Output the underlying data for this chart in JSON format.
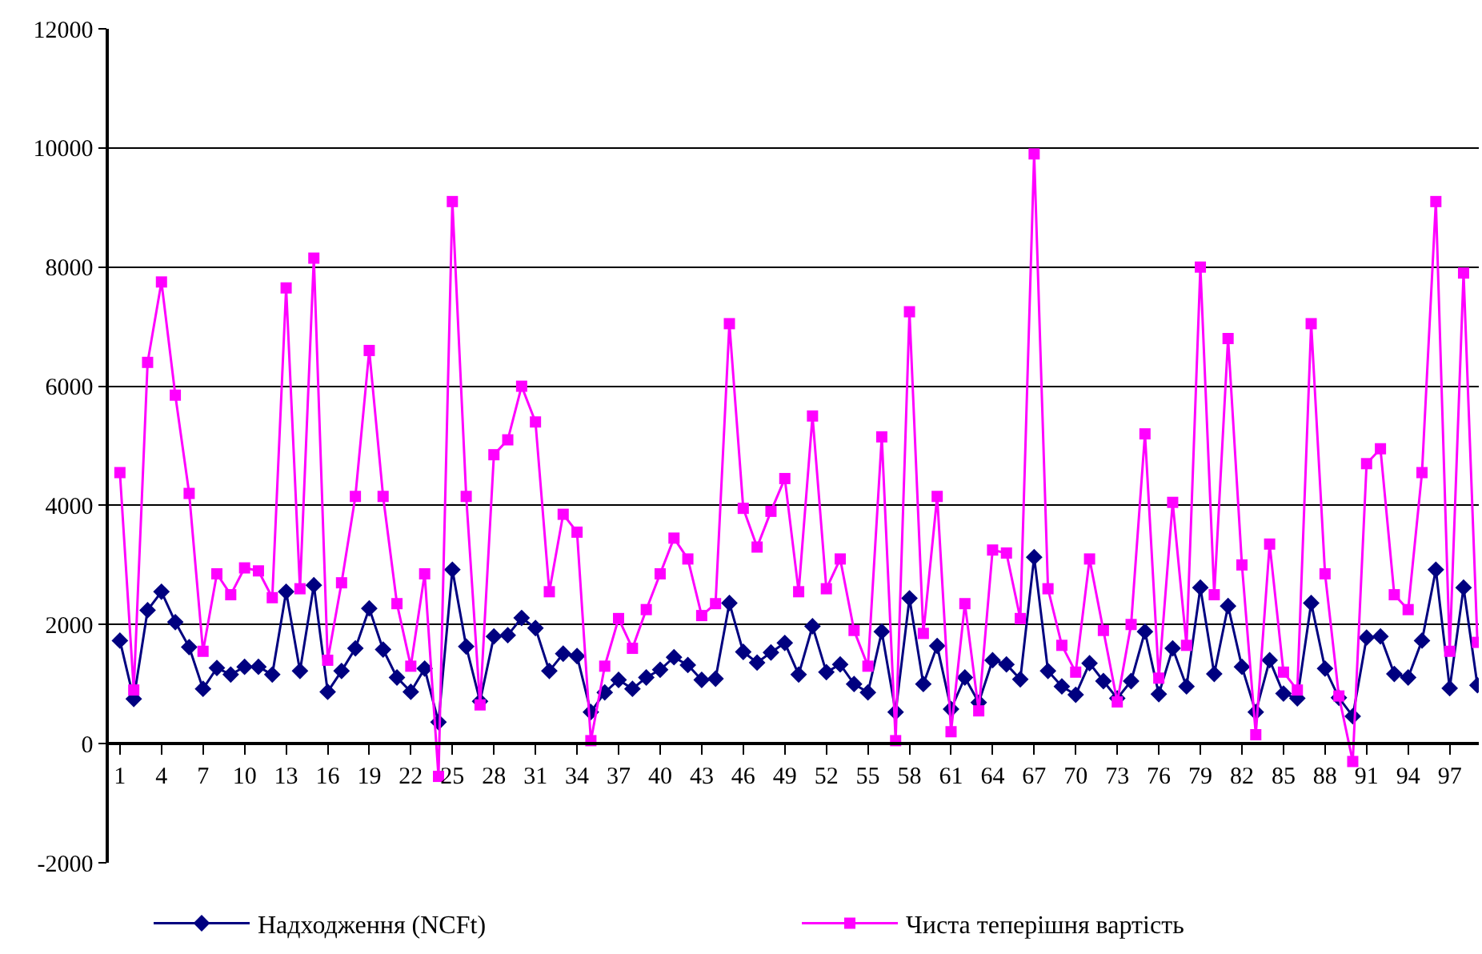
{
  "chart_data": {
    "type": "line",
    "categories": [
      "1",
      null,
      null,
      "4",
      null,
      null,
      "7",
      null,
      null,
      "10",
      null,
      null,
      "13",
      null,
      null,
      "16",
      null,
      null,
      "19",
      null,
      null,
      "22",
      null,
      null,
      "25",
      null,
      null,
      "28",
      null,
      null,
      "31",
      null,
      null,
      "34",
      null,
      null,
      "37",
      null,
      null,
      "40",
      null,
      null,
      "43",
      null,
      null,
      "46",
      null,
      null,
      "49",
      null,
      null,
      "52",
      null,
      null,
      "55",
      null,
      null,
      "58",
      null,
      null,
      "61",
      null,
      null,
      "64",
      null,
      null,
      "67",
      null,
      null,
      "70",
      null,
      null,
      "73",
      null,
      null,
      "76",
      null,
      null,
      "79",
      null,
      null,
      "82",
      null,
      null,
      "85",
      null,
      null,
      "88",
      null,
      null,
      "91",
      null,
      null,
      "94",
      null,
      null,
      "97",
      null,
      null
    ],
    "series": [
      {
        "name": "Надходження (NCFt)",
        "color": "#000080",
        "marker": "diamond",
        "values": [
          1730,
          750,
          2240,
          2550,
          2040,
          1620,
          920,
          1270,
          1160,
          1290,
          1290,
          1160,
          2550,
          1220,
          2660,
          870,
          1220,
          1600,
          2270,
          1580,
          1110,
          870,
          1260,
          360,
          2920,
          1630,
          710,
          1800,
          1820,
          2110,
          1940,
          1220,
          1510,
          1470,
          530,
          860,
          1070,
          920,
          1110,
          1240,
          1450,
          1320,
          1070,
          1090,
          2360,
          1540,
          1360,
          1530,
          1690,
          1160,
          1970,
          1200,
          1330,
          1000,
          860,
          1880,
          530,
          2440,
          1000,
          1640,
          580,
          1110,
          690,
          1400,
          1330,
          1080,
          3130,
          1220,
          960,
          820,
          1350,
          1050,
          760,
          1050,
          1880,
          830,
          1600,
          960,
          2620,
          1170,
          2310,
          1290,
          530,
          1400,
          840,
          760,
          2360,
          1260,
          770,
          460,
          1780,
          1800,
          1170,
          1110,
          1730,
          2920,
          930,
          2620,
          980
        ]
      },
      {
        "name": "Чиста теперішня вартість",
        "color": "#ff00ff",
        "marker": "square",
        "values": [
          4550,
          900,
          6400,
          7750,
          5850,
          4200,
          1550,
          2850,
          2500,
          2950,
          2900,
          2450,
          7650,
          2600,
          8150,
          1400,
          2700,
          4150,
          6600,
          4150,
          2350,
          1300,
          2850,
          -550,
          9100,
          4150,
          650,
          4850,
          5100,
          6000,
          5400,
          2550,
          3850,
          3550,
          50,
          1300,
          2100,
          1600,
          2250,
          2850,
          3450,
          3100,
          2150,
          2350,
          7050,
          3950,
          3300,
          3900,
          4450,
          2550,
          5500,
          2600,
          3100,
          1900,
          1300,
          5150,
          50,
          7250,
          1850,
          4150,
          200,
          2350,
          550,
          3250,
          3200,
          2100,
          9900,
          2600,
          1650,
          1200,
          3100,
          1900,
          700,
          2000,
          5200,
          1100,
          4050,
          1650,
          8000,
          2500,
          6800,
          3000,
          150,
          3350,
          1200,
          900,
          7050,
          2850,
          800,
          -300,
          4700,
          4950,
          2500,
          2250,
          4550,
          9100,
          1550,
          7900,
          1700
        ]
      }
    ],
    "ylim": [
      -2000,
      12000
    ],
    "yticks": [
      -2000,
      0,
      2000,
      4000,
      6000,
      8000,
      10000,
      12000
    ],
    "grid": "y",
    "legend": "bottom",
    "line_style": "solid"
  }
}
